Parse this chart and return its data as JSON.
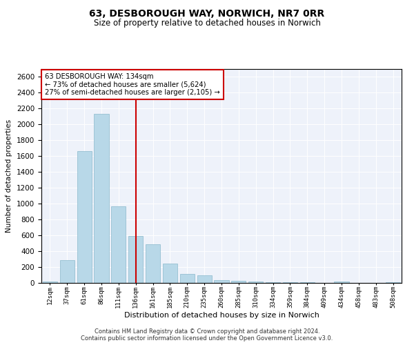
{
  "title": "63, DESBOROUGH WAY, NORWICH, NR7 0RR",
  "subtitle": "Size of property relative to detached houses in Norwich",
  "xlabel": "Distribution of detached houses by size in Norwich",
  "ylabel": "Number of detached properties",
  "categories": [
    "12sqm",
    "37sqm",
    "61sqm",
    "86sqm",
    "111sqm",
    "136sqm",
    "161sqm",
    "185sqm",
    "210sqm",
    "235sqm",
    "260sqm",
    "285sqm",
    "310sqm",
    "334sqm",
    "359sqm",
    "384sqm",
    "409sqm",
    "434sqm",
    "458sqm",
    "483sqm",
    "508sqm"
  ],
  "values": [
    18,
    290,
    1660,
    2130,
    970,
    590,
    490,
    240,
    115,
    95,
    35,
    22,
    18,
    12,
    8,
    5,
    3,
    15,
    3,
    2,
    10
  ],
  "bar_color": "#b8d8e8",
  "bar_edge_color": "#8ab8cc",
  "vline_x": 5,
  "vline_color": "#cc0000",
  "annotation_text": "63 DESBOROUGH WAY: 134sqm\n← 73% of detached houses are smaller (5,624)\n27% of semi-detached houses are larger (2,105) →",
  "annotation_box_facecolor": "#ffffff",
  "annotation_box_edgecolor": "#cc0000",
  "ylim": [
    0,
    2700
  ],
  "yticks": [
    0,
    200,
    400,
    600,
    800,
    1000,
    1200,
    1400,
    1600,
    1800,
    2000,
    2200,
    2400,
    2600
  ],
  "footnote1": "Contains HM Land Registry data © Crown copyright and database right 2024.",
  "footnote2": "Contains public sector information licensed under the Open Government Licence v3.0.",
  "plot_bg_color": "#eef2fa"
}
